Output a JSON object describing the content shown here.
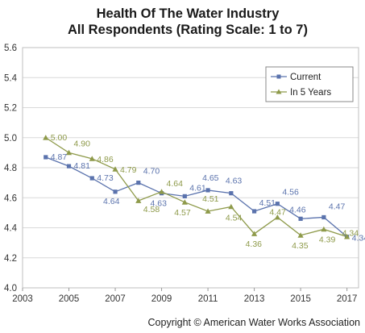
{
  "chart_data": {
    "type": "line",
    "title": "Health Of The Water Industry",
    "subtitle": "All Respondents (Rating Scale: 1 to 7)",
    "xlabel": "",
    "ylabel": "",
    "xlim": [
      2003,
      2017.5
    ],
    "ylim": [
      4.0,
      5.6
    ],
    "x_ticks": [
      "2003",
      "2005",
      "2007",
      "2009",
      "2011",
      "2013",
      "2015",
      "2017"
    ],
    "y_ticks": [
      "4.0",
      "4.2",
      "4.4",
      "4.6",
      "4.8",
      "5.0",
      "5.2",
      "5.4",
      "5.6"
    ],
    "grid": true,
    "legend_position": "top-right",
    "series": [
      {
        "name": "Current",
        "color": "#5b73ad",
        "marker": "square",
        "x": [
          2004,
          2005,
          2006,
          2007,
          2008,
          2009,
          2010,
          2011,
          2012,
          2013,
          2014,
          2015,
          2016,
          2017
        ],
        "values": [
          4.87,
          4.81,
          4.73,
          4.64,
          4.7,
          4.63,
          4.61,
          4.65,
          4.63,
          4.51,
          4.56,
          4.46,
          4.47,
          4.34
        ],
        "labels": [
          "4.87",
          "4.81",
          "4.73",
          "4.64",
          "4.70",
          "4.63",
          "4.61",
          "4.65",
          "4.63",
          "4.51",
          "4.56",
          "4.46",
          "4.47",
          "4.34"
        ]
      },
      {
        "name": "In 5 Years",
        "color": "#8e9a4a",
        "marker": "triangle",
        "x": [
          2004,
          2005,
          2006,
          2007,
          2008,
          2009,
          2010,
          2011,
          2012,
          2013,
          2014,
          2015,
          2016,
          2017
        ],
        "values": [
          5.0,
          4.9,
          4.86,
          4.79,
          4.58,
          4.64,
          4.57,
          4.51,
          4.54,
          4.36,
          4.47,
          4.35,
          4.39,
          4.34
        ],
        "labels": [
          "5.00",
          "4.90",
          "4.86",
          "4.79",
          "4.58",
          "4.64",
          "4.57",
          "4.51",
          "4.54",
          "4.36",
          "4.47",
          "4.35",
          "4.39",
          "4.34"
        ]
      }
    ]
  },
  "copyright": "Copyright © American Water Works Association"
}
